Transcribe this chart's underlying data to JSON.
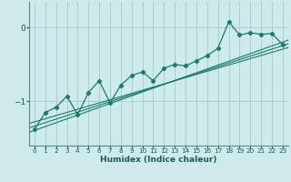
{
  "title": "",
  "xlabel": "Humidex (Indice chaleur)",
  "ylabel": "",
  "bg_color": "#ceeaea",
  "line_color": "#1a7a6e",
  "grid_color": "#aacfcf",
  "x_ticks": [
    0,
    1,
    2,
    3,
    4,
    5,
    6,
    7,
    8,
    9,
    10,
    11,
    12,
    13,
    14,
    15,
    16,
    17,
    18,
    19,
    20,
    21,
    22,
    23
  ],
  "y_ticks": [
    -1,
    0
  ],
  "ylim": [
    -1.6,
    0.35
  ],
  "xlim": [
    -0.5,
    23.5
  ],
  "data_line": [
    [
      0,
      -1.38
    ],
    [
      1,
      -1.15
    ],
    [
      2,
      -1.08
    ],
    [
      3,
      -0.93
    ],
    [
      4,
      -1.18
    ],
    [
      5,
      -0.88
    ],
    [
      6,
      -0.72
    ],
    [
      7,
      -1.02
    ],
    [
      8,
      -0.78
    ],
    [
      9,
      -0.65
    ],
    [
      10,
      -0.6
    ],
    [
      11,
      -0.72
    ],
    [
      12,
      -0.55
    ],
    [
      13,
      -0.5
    ],
    [
      14,
      -0.52
    ],
    [
      15,
      -0.45
    ],
    [
      16,
      -0.38
    ],
    [
      17,
      -0.28
    ],
    [
      18,
      0.08
    ],
    [
      19,
      -0.1
    ],
    [
      20,
      -0.07
    ],
    [
      21,
      -0.09
    ],
    [
      22,
      -0.08
    ],
    [
      23,
      -0.23
    ]
  ],
  "trend_lines": [
    [
      [
        -0.5,
        -1.42
      ],
      [
        23.5,
        -0.17
      ]
    ],
    [
      [
        -0.5,
        -1.36
      ],
      [
        23.5,
        -0.22
      ]
    ],
    [
      [
        -0.5,
        -1.3
      ],
      [
        23.5,
        -0.27
      ]
    ]
  ]
}
